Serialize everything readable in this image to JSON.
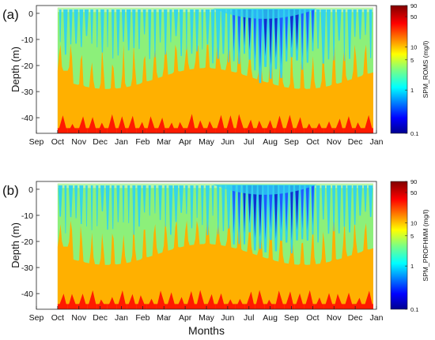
{
  "chart_data": [
    {
      "type": "heatmap",
      "panel_label": "(a)",
      "xlabel": "",
      "ylabel": "Depth (m)",
      "x_tick_labels": [
        "Sep",
        "Oct",
        "Nov",
        "Dec",
        "Jan",
        "Feb",
        "Mar",
        "Apr",
        "May",
        "Jun",
        "Jul",
        "Aug",
        "Sep",
        "Oct",
        "Nov",
        "Dec",
        "Jan"
      ],
      "y_ticks": [
        0,
        -10,
        -20,
        -30,
        -40
      ],
      "ylim": [
        -46,
        3
      ],
      "data_start_month_index": 1,
      "data_end_month_index": 15.85,
      "colorbar": {
        "label": "SPM_ROMS (mg/l)",
        "scale": "log",
        "range": [
          0.1,
          90
        ],
        "tick_labels": [
          "0.1",
          "1",
          "5",
          "10",
          "50",
          "90"
        ],
        "tick_values": [
          0.1,
          1,
          5,
          10,
          50,
          90
        ]
      },
      "levels_mg_per_l": {
        "surface_mid": 4,
        "low_turbidity_summer": 1,
        "deep_orange": 12,
        "bottom_red": 50
      },
      "grid": false
    },
    {
      "type": "heatmap",
      "panel_label": "(b)",
      "xlabel": "Months",
      "ylabel": "Depth (m)",
      "x_tick_labels": [
        "Sep",
        "Oct",
        "Nov",
        "Dec",
        "Jan",
        "Feb",
        "Mar",
        "Apr",
        "May",
        "Jun",
        "Jul",
        "Aug",
        "Sep",
        "Oct",
        "Nov",
        "Dec",
        "Jan"
      ],
      "y_ticks": [
        0,
        -10,
        -20,
        -30,
        -40
      ],
      "ylim": [
        -46,
        3
      ],
      "data_start_month_index": 1,
      "data_end_month_index": 15.85,
      "colorbar": {
        "label": "SPM_PROFHMM (mg/l)",
        "scale": "log",
        "range": [
          0.1,
          90
        ],
        "tick_labels": [
          "0.1",
          "1",
          "5",
          "10",
          "50",
          "90"
        ],
        "tick_values": [
          0.1,
          1,
          5,
          10,
          50,
          90
        ]
      },
      "levels_mg_per_l": {
        "surface_mid": 4,
        "low_turbidity_summer": 1,
        "deep_orange": 12,
        "bottom_red": 50
      },
      "grid": false
    }
  ],
  "colors": {
    "green": "#8cf07a",
    "lightgreen": "#b8f5a8",
    "cyan": "#2fd2f0",
    "blue": "#1e5cff",
    "deepblue": "#1030d0",
    "orange": "#ffb000",
    "red": "#ff1a00"
  }
}
